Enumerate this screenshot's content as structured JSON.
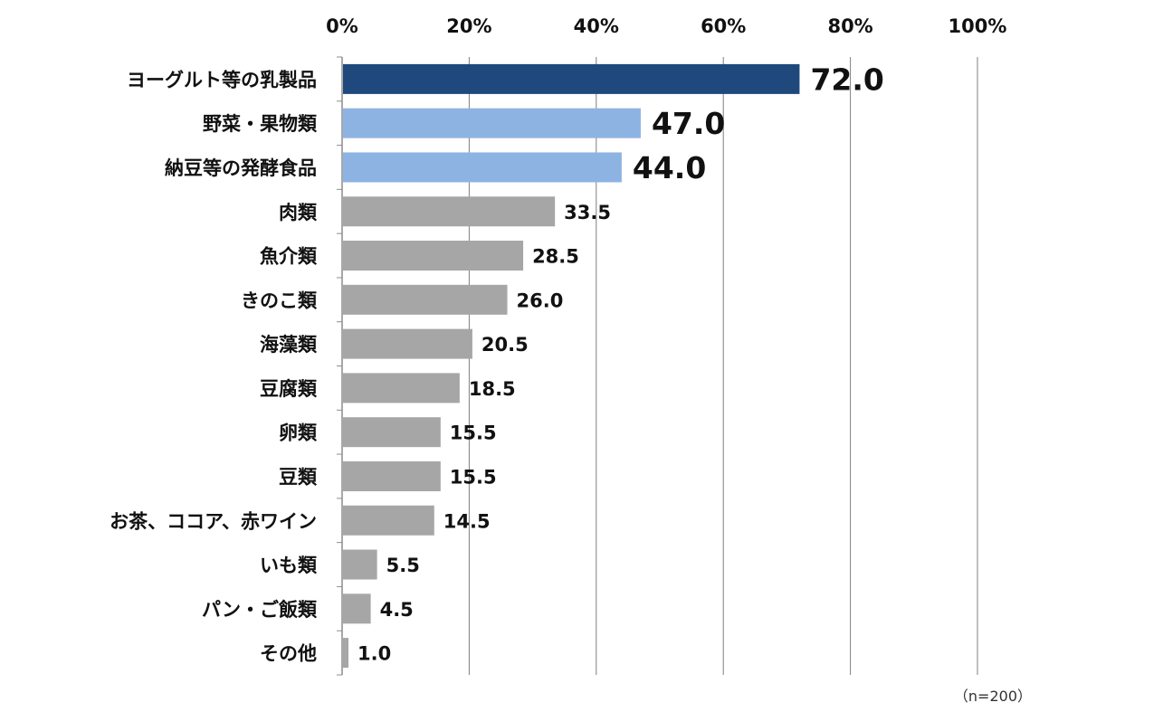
{
  "chart_data": {
    "type": "bar",
    "orientation": "horizontal",
    "categories": [
      "ヨーグルト等の乳製品",
      "野菜・果物類",
      "納豆等の発酵食品",
      "肉類",
      "魚介類",
      "きのこ類",
      "海藻類",
      "豆腐類",
      "卵類",
      "豆類",
      "お茶、ココア、赤ワイン",
      "いも類",
      "パン・ご飯類",
      "その他"
    ],
    "values": [
      72.0,
      47.0,
      44.0,
      33.5,
      28.5,
      26.0,
      20.5,
      18.5,
      15.5,
      15.5,
      14.5,
      5.5,
      4.5,
      1.0
    ],
    "value_labels": [
      "72.0",
      "47.0",
      "44.0",
      "33.5",
      "28.5",
      "26.0",
      "20.5",
      "18.5",
      "15.5",
      "15.5",
      "14.5",
      "5.5",
      "4.5",
      "1.0"
    ],
    "xlim": [
      0,
      100
    ],
    "x_ticks": [
      "0%",
      "20%",
      "40%",
      "60%",
      "80%",
      "100%"
    ],
    "x_tick_values": [
      0,
      20,
      40,
      60,
      80,
      100
    ],
    "x_axis_position": "top",
    "grid": true,
    "bar_colors": [
      "#1f497d",
      "#8db3e2",
      "#8db3e2",
      "#a6a6a6",
      "#a6a6a6",
      "#a6a6a6",
      "#a6a6a6",
      "#a6a6a6",
      "#a6a6a6",
      "#a6a6a6",
      "#a6a6a6",
      "#a6a6a6",
      "#a6a6a6",
      "#a6a6a6"
    ],
    "highlighted_top_n": 3,
    "note": "（n=200）"
  }
}
